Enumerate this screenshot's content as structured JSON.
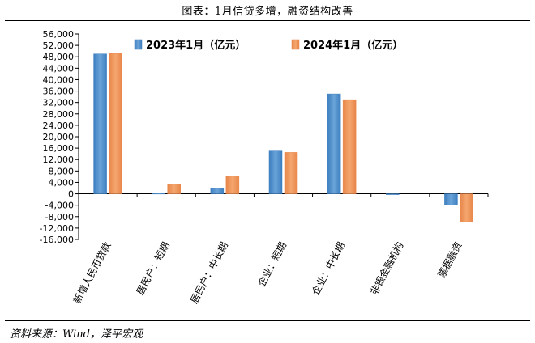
{
  "title": "图表：1月信贷多增，融资结构改善",
  "source": "资料来源：Wind，泽平宏观",
  "colors": {
    "series_2023": "#3d7fc0",
    "series_2023_light": "#6aa3d8",
    "series_2024": "#f4a66e",
    "series_2024_dark": "#e8864a"
  },
  "chart_data": {
    "type": "bar",
    "title": "图表：1月信贷多增，融资结构改善",
    "xlabel": "",
    "ylabel": "",
    "ylim": [
      -16000,
      56000
    ],
    "ytick_step": 4000,
    "yticks": [
      "56,000",
      "52,000",
      "48,000",
      "44,000",
      "40,000",
      "36,000",
      "32,000",
      "28,000",
      "24,000",
      "20,000",
      "16,000",
      "12,000",
      "8,000",
      "4,000",
      "0",
      "-4,000",
      "-8,000",
      "-12,000",
      "-16,000"
    ],
    "categories": [
      "新增人民币贷款",
      "居民户：短期",
      "居民户：中长期",
      "企业：短期",
      "企业：中长期",
      "非银金融机构",
      "票据融资"
    ],
    "series": [
      {
        "name": "2023年1月（亿元）",
        "values": [
          49000,
          200,
          2000,
          15000,
          35000,
          -300,
          -4000
        ]
      },
      {
        "name": "2024年1月（亿元）",
        "values": [
          49200,
          3400,
          6200,
          14500,
          33000,
          0,
          -9800
        ]
      }
    ],
    "legend": "top-center"
  }
}
